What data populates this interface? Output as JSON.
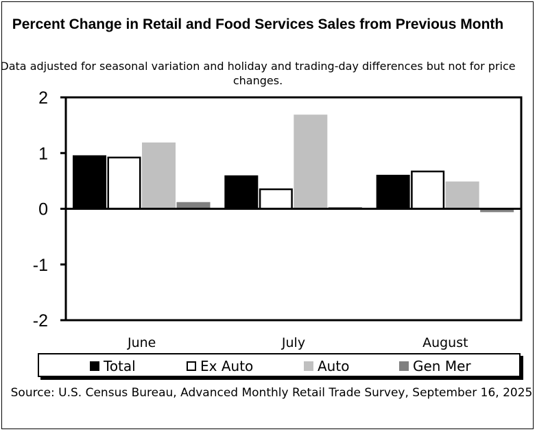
{
  "page": {
    "title": "Percent Change in Retail and Food Services Sales from Previous Month",
    "subtitle": "Data adjusted for seasonal variation and holiday and trading-day differences but not for price changes.",
    "source": "Source: U.S. Census Bureau, Advanced Monthly Retail Trade Survey, September 16, 2025"
  },
  "chart_data": {
    "type": "bar",
    "title": "Percent Change in Retail and Food Services Sales from Previous Month",
    "subtitle": "Data adjusted for seasonal variation and holiday and trading-day differences but not for price changes.",
    "categories": [
      "June",
      "July",
      "August"
    ],
    "series": [
      {
        "name": "Total",
        "values": [
          0.96,
          0.6,
          0.61
        ],
        "color": "#000000",
        "style": "solid"
      },
      {
        "name": "Ex Auto",
        "values": [
          0.92,
          0.35,
          0.67
        ],
        "color": "#ffffff",
        "style": "outline"
      },
      {
        "name": "Auto",
        "values": [
          1.19,
          1.69,
          0.49
        ],
        "color": "#c0c0c0",
        "style": "solid"
      },
      {
        "name": "Gen Mer",
        "values": [
          0.12,
          0.03,
          -0.06
        ],
        "color": "#808080",
        "style": "solid"
      }
    ],
    "ylim": [
      -2,
      2
    ],
    "yticks": [
      2,
      1,
      0,
      -1,
      -2
    ],
    "ytick_labels": [
      "2",
      "1",
      "0",
      "-1",
      "-2"
    ],
    "xlabel": "",
    "ylabel": "",
    "grid": false,
    "legend_position": "bottom"
  }
}
